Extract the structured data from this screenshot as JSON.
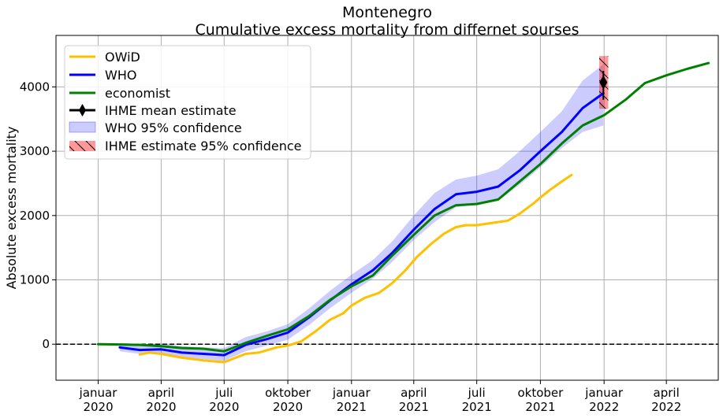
{
  "chart_data": {
    "type": "line",
    "title": "Montenegro",
    "subtitle": "Cumulative excess mortality from differnet sourses",
    "xlabel": "",
    "ylabel": "Absolute excess mortality",
    "x_axis": {
      "type": "date",
      "range": [
        "2019-11-01",
        "2022-06-15"
      ],
      "ticks": [
        {
          "date": "2020-01-01",
          "label1": "januar",
          "label2": "2020"
        },
        {
          "date": "2020-04-01",
          "label1": "april",
          "label2": "2020"
        },
        {
          "date": "2020-07-01",
          "label1": "juli",
          "label2": "2020"
        },
        {
          "date": "2020-10-01",
          "label1": "oktober",
          "label2": "2020"
        },
        {
          "date": "2021-01-01",
          "label1": "januar",
          "label2": "2021"
        },
        {
          "date": "2021-04-01",
          "label1": "april",
          "label2": "2021"
        },
        {
          "date": "2021-07-01",
          "label1": "juli",
          "label2": "2021"
        },
        {
          "date": "2021-10-01",
          "label1": "oktober",
          "label2": "2021"
        },
        {
          "date": "2022-01-01",
          "label1": "januar",
          "label2": "2022"
        },
        {
          "date": "2022-04-01",
          "label1": "april",
          "label2": "2022"
        }
      ]
    },
    "y_axis": {
      "range": [
        -560,
        4800
      ],
      "ticks": [
        0,
        1000,
        2000,
        3000,
        4000
      ]
    },
    "grid": true,
    "zero_line": {
      "y": 0,
      "style": "dashed",
      "color": "#000000"
    },
    "legend": {
      "placement": "top-left"
    },
    "series": [
      {
        "name": "OWiD",
        "color": "#ffc000",
        "points": [
          [
            "2020-03-01",
            -160
          ],
          [
            "2020-03-15",
            -130
          ],
          [
            "2020-04-01",
            -150
          ],
          [
            "2020-05-01",
            -210
          ],
          [
            "2020-06-01",
            -250
          ],
          [
            "2020-07-01",
            -280
          ],
          [
            "2020-08-01",
            -150
          ],
          [
            "2020-08-20",
            -130
          ],
          [
            "2020-09-15",
            -50
          ],
          [
            "2020-10-01",
            -20
          ],
          [
            "2020-10-20",
            40
          ],
          [
            "2020-11-10",
            200
          ],
          [
            "2020-12-01",
            380
          ],
          [
            "2020-12-20",
            480
          ],
          [
            "2021-01-01",
            600
          ],
          [
            "2021-01-20",
            720
          ],
          [
            "2021-02-10",
            800
          ],
          [
            "2021-03-01",
            950
          ],
          [
            "2021-03-20",
            1150
          ],
          [
            "2021-04-05",
            1350
          ],
          [
            "2021-04-25",
            1550
          ],
          [
            "2021-05-15",
            1720
          ],
          [
            "2021-06-01",
            1820
          ],
          [
            "2021-06-15",
            1850
          ],
          [
            "2021-07-01",
            1850
          ],
          [
            "2021-07-20",
            1880
          ],
          [
            "2021-08-15",
            1920
          ],
          [
            "2021-09-01",
            2030
          ],
          [
            "2021-09-20",
            2180
          ],
          [
            "2021-10-01",
            2280
          ],
          [
            "2021-10-15",
            2400
          ],
          [
            "2021-11-01",
            2530
          ],
          [
            "2021-11-15",
            2630
          ]
        ]
      },
      {
        "name": "WHO",
        "color": "#0000ff",
        "points": [
          [
            "2020-02-01",
            -50
          ],
          [
            "2020-03-01",
            -90
          ],
          [
            "2020-04-01",
            -80
          ],
          [
            "2020-05-01",
            -130
          ],
          [
            "2020-06-01",
            -150
          ],
          [
            "2020-07-01",
            -170
          ],
          [
            "2020-08-01",
            -10
          ],
          [
            "2020-09-01",
            80
          ],
          [
            "2020-10-01",
            180
          ],
          [
            "2020-11-01",
            420
          ],
          [
            "2020-12-01",
            680
          ],
          [
            "2021-01-01",
            930
          ],
          [
            "2021-02-01",
            1150
          ],
          [
            "2021-03-01",
            1420
          ],
          [
            "2021-04-01",
            1780
          ],
          [
            "2021-05-01",
            2100
          ],
          [
            "2021-06-01",
            2330
          ],
          [
            "2021-07-01",
            2370
          ],
          [
            "2021-08-01",
            2450
          ],
          [
            "2021-09-01",
            2700
          ],
          [
            "2021-10-01",
            3000
          ],
          [
            "2021-11-01",
            3300
          ],
          [
            "2021-12-01",
            3670
          ],
          [
            "2021-12-31",
            3900
          ]
        ]
      },
      {
        "name": "economist",
        "color": "#008000",
        "points": [
          [
            "2020-01-01",
            0
          ],
          [
            "2020-02-01",
            -5
          ],
          [
            "2020-03-01",
            -10
          ],
          [
            "2020-04-01",
            -30
          ],
          [
            "2020-05-01",
            -60
          ],
          [
            "2020-06-01",
            -70
          ],
          [
            "2020-07-01",
            -110
          ],
          [
            "2020-08-01",
            20
          ],
          [
            "2020-09-01",
            130
          ],
          [
            "2020-10-01",
            230
          ],
          [
            "2020-11-01",
            440
          ],
          [
            "2020-12-01",
            690
          ],
          [
            "2021-01-01",
            900
          ],
          [
            "2021-02-01",
            1070
          ],
          [
            "2021-03-01",
            1380
          ],
          [
            "2021-04-01",
            1700
          ],
          [
            "2021-05-01",
            2000
          ],
          [
            "2021-06-01",
            2160
          ],
          [
            "2021-07-01",
            2180
          ],
          [
            "2021-08-01",
            2250
          ],
          [
            "2021-09-01",
            2530
          ],
          [
            "2021-10-01",
            2800
          ],
          [
            "2021-11-01",
            3120
          ],
          [
            "2021-12-01",
            3400
          ],
          [
            "2022-01-01",
            3560
          ],
          [
            "2022-02-01",
            3800
          ],
          [
            "2022-03-01",
            4060
          ],
          [
            "2022-04-01",
            4180
          ],
          [
            "2022-05-01",
            4280
          ],
          [
            "2022-06-01",
            4370
          ]
        ]
      }
    ],
    "confidence_band": {
      "name": "WHO 95% confidence",
      "color": "#0000ff",
      "opacity": 0.2,
      "upper": [
        [
          "2020-02-01",
          20
        ],
        [
          "2020-03-01",
          0
        ],
        [
          "2020-04-01",
          10
        ],
        [
          "2020-05-01",
          -30
        ],
        [
          "2020-06-01",
          -50
        ],
        [
          "2020-07-01",
          -60
        ],
        [
          "2020-08-01",
          110
        ],
        [
          "2020-09-01",
          200
        ],
        [
          "2020-10-01",
          310
        ],
        [
          "2020-11-01",
          560
        ],
        [
          "2020-12-01",
          830
        ],
        [
          "2021-01-01",
          1080
        ],
        [
          "2021-02-01",
          1310
        ],
        [
          "2021-03-01",
          1600
        ],
        [
          "2021-04-01",
          2000
        ],
        [
          "2021-05-01",
          2350
        ],
        [
          "2021-06-01",
          2560
        ],
        [
          "2021-07-01",
          2620
        ],
        [
          "2021-08-01",
          2720
        ],
        [
          "2021-09-01",
          3000
        ],
        [
          "2021-10-01",
          3300
        ],
        [
          "2021-11-01",
          3620
        ],
        [
          "2021-12-01",
          4100
        ],
        [
          "2021-12-31",
          4350
        ]
      ],
      "lower": [
        [
          "2020-02-01",
          -110
        ],
        [
          "2020-03-01",
          -150
        ],
        [
          "2020-04-01",
          -150
        ],
        [
          "2020-05-01",
          -210
        ],
        [
          "2020-06-01",
          -230
        ],
        [
          "2020-07-01",
          -260
        ],
        [
          "2020-08-01",
          -110
        ],
        [
          "2020-09-01",
          -20
        ],
        [
          "2020-10-01",
          70
        ],
        [
          "2020-11-01",
          300
        ],
        [
          "2020-12-01",
          560
        ],
        [
          "2021-01-01",
          800
        ],
        [
          "2021-02-01",
          1020
        ],
        [
          "2021-03-01",
          1280
        ],
        [
          "2021-04-01",
          1620
        ],
        [
          "2021-05-01",
          1900
        ],
        [
          "2021-06-01",
          2130
        ],
        [
          "2021-07-01",
          2170
        ],
        [
          "2021-08-01",
          2230
        ],
        [
          "2021-09-01",
          2480
        ],
        [
          "2021-10-01",
          2750
        ],
        [
          "2021-11-01",
          3050
        ],
        [
          "2021-12-01",
          3300
        ],
        [
          "2021-12-31",
          3400
        ]
      ]
    },
    "ihme_mean": {
      "name": "IHME mean estimate",
      "date": "2021-12-31",
      "value": 4070,
      "error_low": 3800,
      "error_high": 4250,
      "color": "#000000"
    },
    "ihme_band": {
      "name": " IHME estimate 95% confidence",
      "start": "2021-12-25",
      "end": "2022-01-07",
      "low": 3660,
      "high": 4480,
      "color": "#ff0000",
      "opacity": 0.4
    },
    "legend_entries": [
      "OWiD",
      "WHO",
      "economist",
      "IHME mean estimate",
      "WHO 95% confidence",
      " IHME estimate 95% confidence"
    ]
  }
}
